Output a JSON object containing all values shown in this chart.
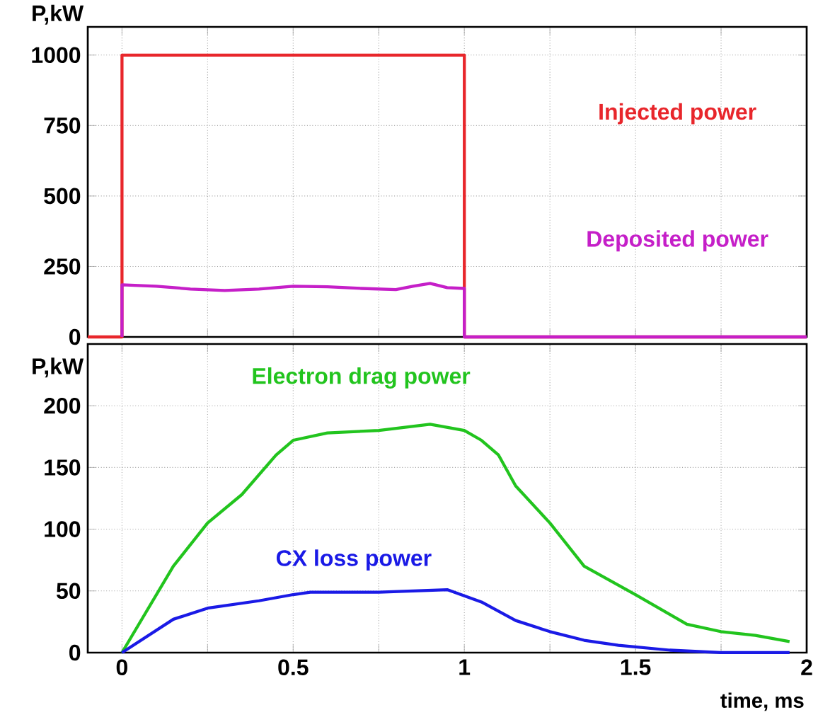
{
  "chart_data": [
    {
      "type": "line",
      "ylabel": "P,kW",
      "xlim": [
        -0.1,
        2
      ],
      "ylim": [
        0,
        1100
      ],
      "xticks": [
        0,
        {
          "value": 0.25,
          "label": null
        },
        0.5,
        {
          "value": 0.75,
          "label": null
        },
        1,
        {
          "value": 1.25,
          "label": null
        },
        1.5,
        {
          "value": 1.75,
          "label": null
        },
        2
      ],
      "yticks": [
        0,
        250,
        500,
        750,
        1000
      ],
      "grid": true,
      "tick_labels": "y",
      "series": [
        {
          "name": "Injected power",
          "color": "#e8262b",
          "x": [
            -0.1,
            0,
            0,
            1,
            1,
            2
          ],
          "values": [
            0,
            0,
            1000,
            1000,
            0,
            0
          ]
        },
        {
          "name": "Deposited power",
          "color": "#c51fc8",
          "x": [
            0,
            0,
            0.1,
            0.2,
            0.3,
            0.4,
            0.5,
            0.6,
            0.7,
            0.8,
            0.85,
            0.9,
            0.95,
            1,
            1,
            2
          ],
          "values": [
            0,
            185,
            180,
            170,
            165,
            170,
            180,
            178,
            172,
            168,
            180,
            190,
            175,
            172,
            0,
            0
          ]
        }
      ]
    },
    {
      "type": "line",
      "ylabel": "P,kW",
      "xlabel": "time, ms",
      "xlim": [
        -0.1,
        2
      ],
      "ylim": [
        0,
        250
      ],
      "xticks": [
        0,
        {
          "value": 0.25,
          "label": null
        },
        0.5,
        {
          "value": 0.75,
          "label": null
        },
        1,
        {
          "value": 1.25,
          "label": null
        },
        1.5,
        {
          "value": 1.75,
          "label": null
        },
        2
      ],
      "yticks": [
        0,
        50,
        100,
        150,
        200
      ],
      "grid": true,
      "series": [
        {
          "name": "Electron drag power",
          "color": "#22c41e",
          "x": [
            0,
            0.15,
            0.25,
            0.35,
            0.45,
            0.5,
            0.6,
            0.75,
            0.9,
            1.0,
            1.05,
            1.1,
            1.15,
            1.25,
            1.35,
            1.5,
            1.65,
            1.75,
            1.85,
            1.95
          ],
          "values": [
            0,
            70,
            105,
            128,
            160,
            172,
            178,
            180,
            185,
            180,
            172,
            160,
            135,
            105,
            70,
            47,
            23,
            17,
            14,
            9
          ]
        },
        {
          "name": "CX loss power",
          "color": "#1a1ae6",
          "x": [
            0,
            0.15,
            0.25,
            0.4,
            0.5,
            0.55,
            0.75,
            0.95,
            1.05,
            1.15,
            1.25,
            1.35,
            1.45,
            1.6,
            1.75,
            1.95
          ],
          "values": [
            0,
            27,
            36,
            42,
            47,
            49,
            49,
            51,
            41,
            26,
            17,
            10,
            6,
            2,
            0,
            0
          ]
        }
      ]
    }
  ]
}
